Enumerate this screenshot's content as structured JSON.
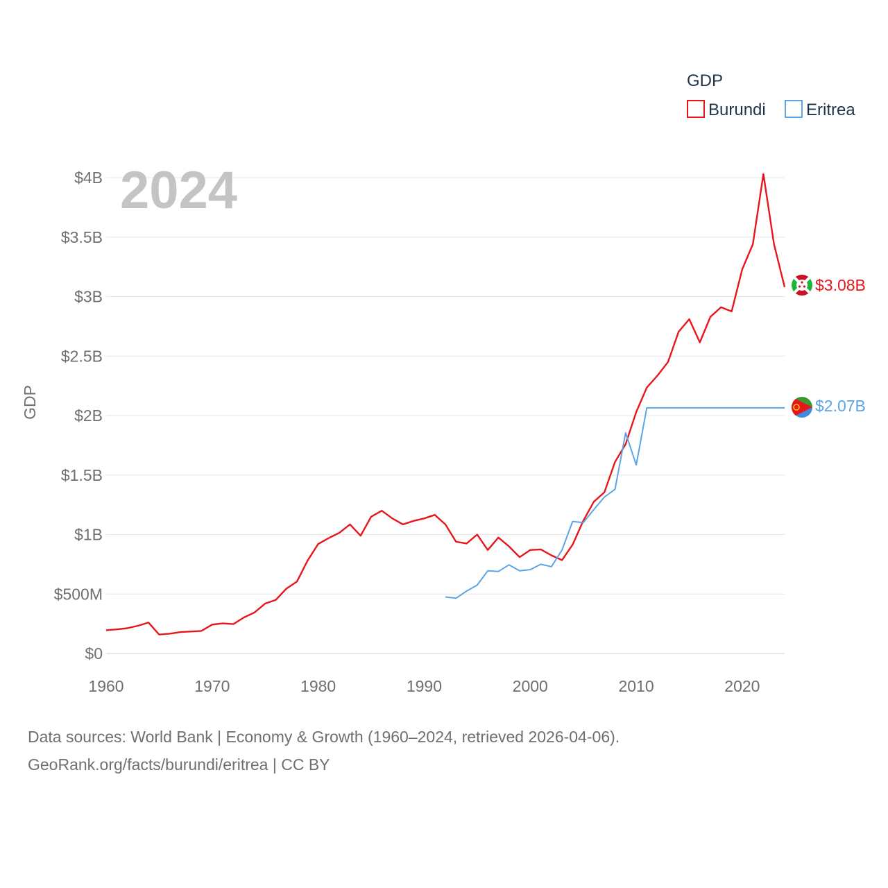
{
  "chart_data": {
    "type": "line",
    "title": "",
    "xlabel": "",
    "ylabel": "GDP",
    "year_label": "2024",
    "xlim": [
      1960,
      2024
    ],
    "ylim": [
      0,
      4000000000
    ],
    "x_ticks": [
      1960,
      1970,
      1980,
      1990,
      2000,
      2010,
      2020
    ],
    "y_ticks": [
      0,
      500000000,
      1000000000,
      1500000000,
      2000000000,
      2500000000,
      3000000000,
      3500000000,
      4000000000
    ],
    "y_tick_labels": [
      "$0",
      "$500M",
      "$1B",
      "$1.5B",
      "$2B",
      "$2.5B",
      "$3B",
      "$3.5B",
      "$4B"
    ],
    "legend": {
      "title": "GDP",
      "position": "top-right"
    },
    "series": [
      {
        "name": "Burundi",
        "color": "#e8161b",
        "end_label": "$3.08B",
        "flag": "burundi-flag",
        "x": [
          1960,
          1961,
          1962,
          1963,
          1964,
          1965,
          1966,
          1967,
          1968,
          1969,
          1970,
          1971,
          1972,
          1973,
          1974,
          1975,
          1976,
          1977,
          1978,
          1979,
          1980,
          1981,
          1982,
          1983,
          1984,
          1985,
          1986,
          1987,
          1988,
          1989,
          1990,
          1991,
          1992,
          1993,
          1994,
          1995,
          1996,
          1997,
          1998,
          1999,
          2000,
          2001,
          2002,
          2003,
          2004,
          2005,
          2006,
          2007,
          2008,
          2009,
          2010,
          2011,
          2012,
          2013,
          2014,
          2015,
          2016,
          2017,
          2018,
          2019,
          2020,
          2021,
          2022,
          2023,
          2024
        ],
        "values": [
          196000000,
          203000000,
          213000000,
          233000000,
          260000000,
          159000000,
          167000000,
          180000000,
          185000000,
          190000000,
          243000000,
          253000000,
          247000000,
          303000000,
          345000000,
          420000000,
          450000000,
          545000000,
          605000000,
          780000000,
          920000000,
          970000000,
          1015000000,
          1085000000,
          990000000,
          1150000000,
          1200000000,
          1135000000,
          1085000000,
          1115000000,
          1135000000,
          1165000000,
          1085000000,
          940000000,
          925000000,
          1000000000,
          870000000,
          975000000,
          900000000,
          810000000,
          870000000,
          875000000,
          825000000,
          785000000,
          915000000,
          1115000000,
          1275000000,
          1355000000,
          1610000000,
          1760000000,
          2030000000,
          2235000000,
          2335000000,
          2450000000,
          2705000000,
          2810000000,
          2615000000,
          2830000000,
          2910000000,
          2875000000,
          3230000000,
          3440000000,
          4030000000,
          3440000000,
          3080000000
        ]
      },
      {
        "name": "Eritrea",
        "color": "#5ba4e5",
        "end_label": "$2.07B",
        "flag": "eritrea-flag",
        "x": [
          1992,
          1993,
          1994,
          1995,
          1996,
          1997,
          1998,
          1999,
          2000,
          2001,
          2002,
          2003,
          2004,
          2005,
          2006,
          2007,
          2008,
          2009,
          2010,
          2011,
          2012,
          2013,
          2014,
          2015,
          2016,
          2017,
          2018,
          2019,
          2020,
          2021,
          2022,
          2023,
          2024
        ],
        "values": [
          475000000,
          465000000,
          525000000,
          575000000,
          695000000,
          690000000,
          745000000,
          695000000,
          705000000,
          750000000,
          730000000,
          870000000,
          1110000000,
          1100000000,
          1210000000,
          1315000000,
          1380000000,
          1855000000,
          1585000000,
          2065000000,
          2065000000,
          2065000000,
          2065000000,
          2065000000,
          2065000000,
          2065000000,
          2065000000,
          2065000000,
          2065000000,
          2065000000,
          2065000000,
          2065000000,
          2065000000
        ]
      }
    ]
  },
  "footer": {
    "line1": "Data sources: World Bank | Economy & Growth (1960–2024, retrieved 2026-04-06).",
    "line2": "GeoRank.org/facts/burundi/eritrea | CC BY"
  }
}
